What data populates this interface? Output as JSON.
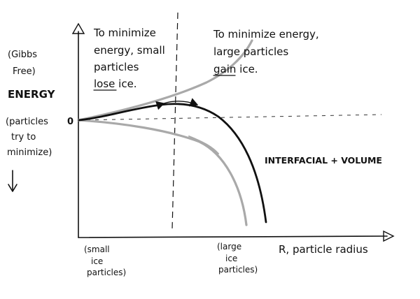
{
  "axes": {
    "y_label_lines": [
      "(Gibbs",
      "Free)",
      "ENERGY",
      "(particles",
      "try to",
      "minimize)"
    ],
    "x_label": "R, particle radius",
    "origin_label": "0"
  },
  "annotations": {
    "left_region_lines": [
      "To minimize",
      "energy, small",
      "particles",
      "lose ice."
    ],
    "right_region_lines": [
      "To minimize energy,",
      "large particles",
      "gain ice."
    ],
    "curve_label": "INTERFACIAL + VOLUME",
    "small_label_lines": [
      "(small",
      "ice",
      "particles)"
    ],
    "large_label_lines": [
      "(large",
      "ice",
      "particles)"
    ]
  },
  "colors": {
    "ink": "#111111",
    "pencil": "#a9a9a9"
  }
}
